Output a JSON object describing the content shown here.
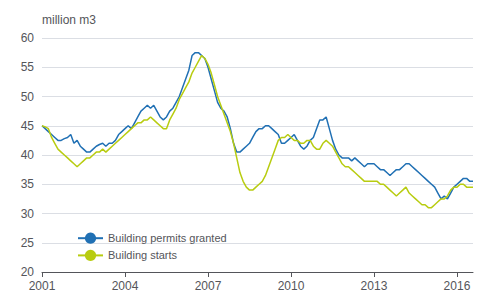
{
  "chart_data": {
    "type": "line",
    "ylabel": "million m3",
    "x": [
      2001.0,
      2001.1154,
      2001.2308,
      2001.3462,
      2001.4616,
      2001.577,
      2001.6924,
      2001.8079,
      2001.9233,
      2002.0387,
      2002.1541,
      2002.2695,
      2002.3849,
      2002.5003,
      2002.6157,
      2002.7311,
      2002.8465,
      2002.9619,
      2003.0773,
      2003.1927,
      2003.3081,
      2003.4236,
      2003.539,
      2003.6544,
      2003.7698,
      2003.8852,
      2004.0006,
      2004.116,
      2004.2314,
      2004.3468,
      2004.4622,
      2004.5776,
      2004.693,
      2004.8084,
      2004.9239,
      2005.0393,
      2005.1547,
      2005.2701,
      2005.3855,
      2005.5009,
      2005.6163,
      2005.7317,
      2005.8471,
      2005.9625,
      2006.0779,
      2006.1933,
      2006.3087,
      2006.4241,
      2006.5396,
      2006.655,
      2006.7704,
      2006.8858,
      2007.0012,
      2007.1166,
      2007.232,
      2007.3474,
      2007.4628,
      2007.5782,
      2007.6936,
      2007.809,
      2007.9244,
      2008.0399,
      2008.1553,
      2008.2707,
      2008.3861,
      2008.5015,
      2008.6169,
      2008.7323,
      2008.8477,
      2008.9631,
      2009.0785,
      2009.1939,
      2009.3093,
      2009.4247,
      2009.5401,
      2009.6556,
      2009.771,
      2009.8864,
      2010.0018,
      2010.1172,
      2010.2326,
      2010.348,
      2010.4634,
      2010.5788,
      2010.6942,
      2010.8096,
      2010.925,
      2011.0404,
      2011.1559,
      2011.2713,
      2011.3867,
      2011.5021,
      2011.6175,
      2011.7329,
      2011.8483,
      2011.9637,
      2012.0791,
      2012.1945,
      2012.3099,
      2012.4253,
      2012.5407,
      2012.6561,
      2012.7716,
      2012.887,
      2013.0024,
      2013.1178,
      2013.2332,
      2013.3486,
      2013.464,
      2013.5794,
      2013.6948,
      2013.8102,
      2013.9256,
      2014.041,
      2014.1564,
      2014.2719,
      2014.3873,
      2014.5027,
      2014.6181,
      2014.7335,
      2014.8489,
      2014.9643,
      2015.0797,
      2015.1951,
      2015.3105,
      2015.4259,
      2015.5413,
      2015.6567,
      2015.7721,
      2015.8876,
      2016.003,
      2016.1184,
      2016.2338,
      2016.3492,
      2016.4646,
      2016.58
    ],
    "series": [
      {
        "name": "Building permits granted",
        "color": "#2070b4",
        "values": [
          45.0,
          44.5,
          44.0,
          43.5,
          43.0,
          42.5,
          42.5,
          42.8,
          43.0,
          43.5,
          42.0,
          42.5,
          41.5,
          41.0,
          40.5,
          40.5,
          41.0,
          41.5,
          41.8,
          42.0,
          41.5,
          42.0,
          42.0,
          42.5,
          43.5,
          44.0,
          44.5,
          45.0,
          44.5,
          45.5,
          46.5,
          47.5,
          48.0,
          48.5,
          48.0,
          48.5,
          47.5,
          46.5,
          46.0,
          46.5,
          47.5,
          48.0,
          49.0,
          50.0,
          51.5,
          53.0,
          54.5,
          57.0,
          57.5,
          57.5,
          57.0,
          56.5,
          55.0,
          53.0,
          51.0,
          49.0,
          48.0,
          47.5,
          46.5,
          44.5,
          42.0,
          40.5,
          40.5,
          41.0,
          41.5,
          42.0,
          43.0,
          44.0,
          44.5,
          44.5,
          45.0,
          45.0,
          44.5,
          44.0,
          43.5,
          42.0,
          42.0,
          42.5,
          43.0,
          43.5,
          42.5,
          41.5,
          41.0,
          41.5,
          42.5,
          43.0,
          44.5,
          46.0,
          46.0,
          46.5,
          44.5,
          42.5,
          41.0,
          40.0,
          39.5,
          39.5,
          39.5,
          39.0,
          39.5,
          39.0,
          38.5,
          38.0,
          38.5,
          38.5,
          38.5,
          38.0,
          37.5,
          37.5,
          37.0,
          36.5,
          37.0,
          37.5,
          37.5,
          38.0,
          38.5,
          38.5,
          38.0,
          37.5,
          37.0,
          36.5,
          36.0,
          35.5,
          35.0,
          34.5,
          33.5,
          32.5,
          33.0,
          32.5,
          33.5,
          34.5,
          35.0,
          35.5,
          36.0,
          36.0,
          35.5,
          35.5
        ]
      },
      {
        "name": "Building starts",
        "color": "#b8cc10",
        "values": [
          45.0,
          44.8,
          44.5,
          43.0,
          42.0,
          41.0,
          40.5,
          40.0,
          39.5,
          39.0,
          38.5,
          38.0,
          38.5,
          39.0,
          39.5,
          39.5,
          40.0,
          40.5,
          40.5,
          41.0,
          40.5,
          41.0,
          41.5,
          42.0,
          42.5,
          43.0,
          43.5,
          44.0,
          44.5,
          45.0,
          45.5,
          45.5,
          46.0,
          46.0,
          46.5,
          46.0,
          45.5,
          45.0,
          44.5,
          44.5,
          46.0,
          47.0,
          48.0,
          49.5,
          50.5,
          51.5,
          52.5,
          54.0,
          55.0,
          56.0,
          57.0,
          56.5,
          55.5,
          54.0,
          52.0,
          50.0,
          48.5,
          47.0,
          45.5,
          44.0,
          42.0,
          39.5,
          37.0,
          35.5,
          34.5,
          34.0,
          34.0,
          34.5,
          35.0,
          35.5,
          36.5,
          38.0,
          39.5,
          41.0,
          42.5,
          43.0,
          43.0,
          43.5,
          43.0,
          42.5,
          42.5,
          42.0,
          42.0,
          42.5,
          42.5,
          41.5,
          41.0,
          41.0,
          42.0,
          42.5,
          42.0,
          41.5,
          40.5,
          39.5,
          38.5,
          38.0,
          38.0,
          37.5,
          37.0,
          36.5,
          36.0,
          35.5,
          35.5,
          35.5,
          35.5,
          35.5,
          35.0,
          35.0,
          34.5,
          34.0,
          33.5,
          33.0,
          33.5,
          34.0,
          34.5,
          33.5,
          33.0,
          32.5,
          32.0,
          31.5,
          31.5,
          31.0,
          31.0,
          31.5,
          32.0,
          32.5,
          32.5,
          33.0,
          34.0,
          34.5,
          34.5,
          35.0,
          35.0,
          34.5,
          34.5,
          34.5
        ]
      }
    ],
    "xlim": [
      2001.0,
      2016.58
    ],
    "xticks": [
      2001,
      2004,
      2007,
      2010,
      2013,
      2016
    ],
    "ylim": [
      20,
      60
    ],
    "yticks": [
      20,
      25,
      30,
      35,
      40,
      45,
      50,
      55,
      60
    ],
    "grid": true,
    "legend": "lower left"
  }
}
